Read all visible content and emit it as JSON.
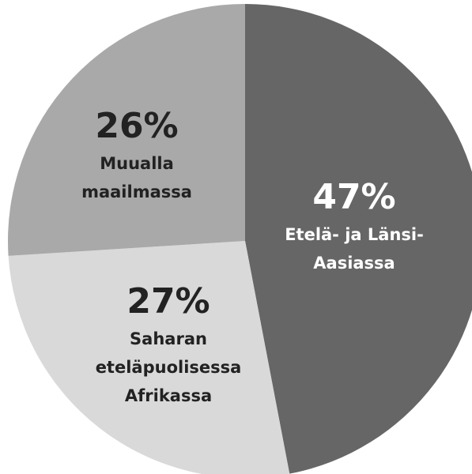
{
  "chart_data": {
    "type": "pie",
    "categories": [
      [
        "Etelä- ja Länsi-",
        "Aasiassa"
      ],
      [
        "Saharan",
        "eteläpuolisessa",
        "Afrikassa"
      ],
      [
        "Muualla",
        "maailmassa"
      ]
    ],
    "values": [
      47,
      27,
      26
    ],
    "value_labels": [
      "47%",
      "27%",
      "26%"
    ],
    "colors": [
      "#666666",
      "#d9d9d9",
      "#a9a9a9"
    ]
  }
}
